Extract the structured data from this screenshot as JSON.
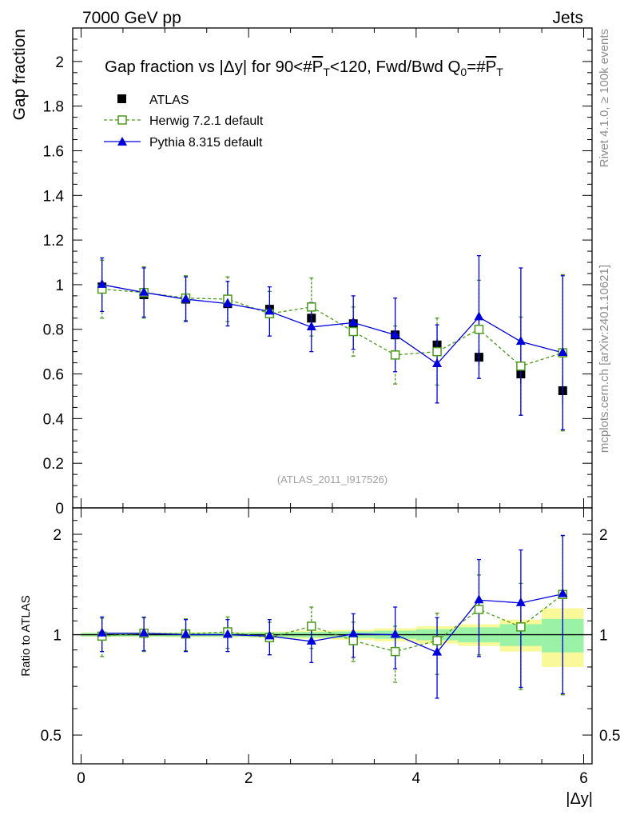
{
  "header": {
    "left": "7000 GeV pp",
    "right": "Jets",
    "title_prefix": "Gap fraction vs |Δy| for 90<#",
    "title_pt": "P",
    "title_sub": "T",
    "title_mid": "<120, Fwd/Bwd Q",
    "title_q_sub": "0",
    "title_eq": "=#",
    "side_right_top": "Rivet 4.1.0, ≥ 100k events",
    "side_right_bottom": "mcplots.cern.ch [arXiv:2401.10621]",
    "analysis_id": "(ATLAS_2011_I917526)"
  },
  "legend": {
    "atlas": "ATLAS",
    "herwig": "Herwig 7.2.1 default",
    "pythia": "Pythia 8.315 default"
  },
  "colors": {
    "atlas": "#000000",
    "herwig": "#4a9a1a",
    "pythia": "#0000dd",
    "band_inner": "#99f2a6",
    "band_outer": "#f9f99a"
  },
  "chart_data": [
    {
      "type": "scatter",
      "panel": "main",
      "ylabel": "Gap fraction",
      "xlim": [
        -0.1,
        6.1
      ],
      "ylim": [
        0,
        2.15
      ],
      "yticks": [
        0,
        0.2,
        0.4,
        0.6,
        0.8,
        1,
        1.2,
        1.4,
        1.6,
        1.8,
        2
      ],
      "ytick_labels": [
        "0",
        "0.2",
        "0.4",
        "0.6",
        "0.8",
        "1",
        "1.2",
        "1.4",
        "1.6",
        "1.8",
        "2"
      ],
      "x": [
        0.25,
        0.75,
        1.25,
        1.75,
        2.25,
        2.75,
        3.25,
        3.75,
        4.25,
        4.75,
        5.25,
        5.75
      ],
      "series": [
        {
          "name": "ATLAS",
          "values": [
            0.99,
            0.955,
            0.935,
            0.915,
            0.89,
            0.85,
            0.825,
            0.775,
            0.73,
            0.675,
            0.6,
            0.525
          ],
          "errors": [
            0.012,
            0.012,
            0.012,
            0.012,
            0.014,
            0.016,
            0.018,
            0.022,
            0.028,
            0.035,
            0.045,
            0.06
          ]
        },
        {
          "name": "Herwig 7.2.1 default",
          "values": [
            0.98,
            0.965,
            0.94,
            0.935,
            0.87,
            0.9,
            0.79,
            0.685,
            0.7,
            0.8,
            0.635,
            0.695
          ],
          "errors": [
            0.13,
            0.115,
            0.1,
            0.1,
            0.1,
            0.13,
            0.11,
            0.13,
            0.15,
            0.22,
            0.22,
            0.35
          ]
        },
        {
          "name": "Pythia 8.315 default",
          "values": [
            1.0,
            0.965,
            0.935,
            0.915,
            0.88,
            0.81,
            0.83,
            0.775,
            0.645,
            0.855,
            0.745,
            0.695
          ],
          "errors": [
            0.12,
            0.11,
            0.1,
            0.1,
            0.11,
            0.11,
            0.12,
            0.165,
            0.175,
            0.275,
            0.33,
            0.345
          ]
        }
      ]
    },
    {
      "type": "scatter",
      "panel": "ratio",
      "ylabel": "Ratio to ATLAS",
      "xlabel": "|Δy|",
      "yscale": "log",
      "xlim": [
        -0.1,
        6.1
      ],
      "ylim": [
        0.41,
        2.4
      ],
      "xticks": [
        0,
        2,
        4,
        6
      ],
      "xtick_labels": [
        "0",
        "2",
        "4",
        "6"
      ],
      "yticks": [
        0.5,
        1,
        2
      ],
      "ytick_labels": [
        "0.5",
        "1",
        "2"
      ],
      "x": [
        0.25,
        0.75,
        1.25,
        1.75,
        2.25,
        2.75,
        3.25,
        3.75,
        4.25,
        4.75,
        5.25,
        5.75
      ],
      "band_inner": [
        0.012,
        0.012,
        0.013,
        0.013,
        0.016,
        0.019,
        0.022,
        0.028,
        0.038,
        0.052,
        0.075,
        0.115
      ],
      "band_outer": [
        0.015,
        0.015,
        0.017,
        0.017,
        0.022,
        0.028,
        0.034,
        0.045,
        0.06,
        0.075,
        0.11,
        0.2
      ],
      "series": [
        {
          "name": "Herwig 7.2.1 default",
          "values": [
            0.99,
            1.01,
            1.005,
            1.02,
            0.98,
            1.06,
            0.96,
            0.89,
            0.96,
            1.19,
            1.055,
            1.32
          ],
          "errors": [
            0.13,
            0.12,
            0.11,
            0.11,
            0.11,
            0.15,
            0.13,
            0.17,
            0.2,
            0.32,
            0.37,
            0.66
          ]
        },
        {
          "name": "Pythia 8.315 default",
          "values": [
            1.01,
            1.01,
            1.0,
            1.0,
            0.99,
            0.955,
            1.005,
            1.0,
            0.885,
            1.27,
            1.245,
            1.325
          ],
          "errors": [
            0.12,
            0.115,
            0.11,
            0.11,
            0.12,
            0.13,
            0.15,
            0.21,
            0.24,
            0.41,
            0.55,
            0.66
          ]
        }
      ]
    }
  ]
}
